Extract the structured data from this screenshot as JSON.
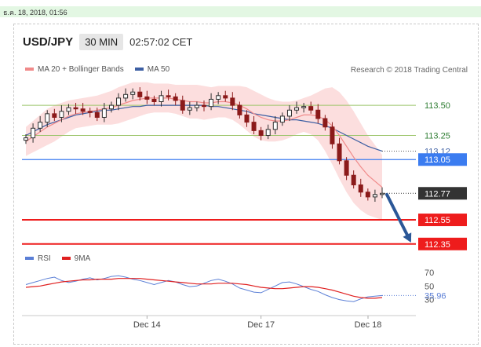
{
  "header": {
    "date_stamp": "ธ.ค. 18, 2018, 01:56",
    "pair": "USD/JPY",
    "timeframe": "30 MIN",
    "clock": "02:57:02 CET",
    "credit": "Research © 2018 Trading Central"
  },
  "legend": [
    {
      "label": "MA 20 + Bollinger Bands",
      "color": "#f08a8a"
    },
    {
      "label": "MA 50",
      "color": "#3d5fa3"
    }
  ],
  "rsi_legend": [
    {
      "label": "RSI",
      "color": "#5b7fd6"
    },
    {
      "label": "9MA",
      "color": "#e02020"
    }
  ],
  "colors": {
    "up_candle": "#2e2e2e",
    "down_candle": "#8b1a1a",
    "resistance": "#9bc46a",
    "support": "#ee1c1c",
    "pivot": "#3b7cf0",
    "forecast_arrow": "#2b5797",
    "bands_fill": "#fbd8d8"
  },
  "chart_data": {
    "type": "candlestick",
    "x_ticks": [
      "Dec 14",
      "Dec 17",
      "Dec 18"
    ],
    "y_range": [
      112.29,
      113.67
    ],
    "levels": [
      {
        "label": "113.50",
        "value": 113.5,
        "kind": "resistance"
      },
      {
        "label": "113.25",
        "value": 113.25,
        "kind": "resistance"
      },
      {
        "label": "113.12",
        "value": 113.12,
        "kind": "ma50"
      },
      {
        "label": "113.05",
        "value": 113.05,
        "kind": "pivot"
      },
      {
        "label": "112.77",
        "value": 112.77,
        "kind": "last"
      },
      {
        "label": "112.55",
        "value": 112.55,
        "kind": "support"
      },
      {
        "label": "112.35",
        "value": 112.35,
        "kind": "support"
      }
    ],
    "forecast": {
      "from": 112.76,
      "to": 112.36
    },
    "close": [
      113.23,
      113.31,
      113.36,
      113.43,
      113.4,
      113.45,
      113.48,
      113.47,
      113.45,
      113.44,
      113.4,
      113.47,
      113.5,
      113.56,
      113.59,
      113.61,
      113.57,
      113.55,
      113.53,
      113.58,
      113.57,
      113.54,
      113.46,
      113.48,
      113.5,
      113.49,
      113.55,
      113.58,
      113.56,
      113.5,
      113.42,
      113.36,
      113.29,
      113.25,
      113.3,
      113.36,
      113.41,
      113.46,
      113.48,
      113.49,
      113.46,
      113.39,
      113.32,
      113.18,
      113.04,
      112.92,
      112.84,
      112.78,
      112.74,
      112.76,
      112.77
    ],
    "ma20": [
      113.2,
      113.24,
      113.28,
      113.32,
      113.35,
      113.38,
      113.41,
      113.43,
      113.44,
      113.45,
      113.46,
      113.47,
      113.48,
      113.5,
      113.52,
      113.54,
      113.55,
      113.56,
      113.56,
      113.56,
      113.56,
      113.55,
      113.54,
      113.53,
      113.53,
      113.52,
      113.52,
      113.53,
      113.53,
      113.52,
      113.5,
      113.47,
      113.43,
      113.4,
      113.38,
      113.37,
      113.37,
      113.38,
      113.4,
      113.42,
      113.42,
      113.41,
      113.38,
      113.33,
      113.25,
      113.16,
      113.07,
      112.99,
      112.92,
      112.87,
      112.82
    ],
    "ma50": [
      113.25,
      113.28,
      113.31,
      113.34,
      113.36,
      113.38,
      113.4,
      113.42,
      113.43,
      113.44,
      113.45,
      113.46,
      113.46,
      113.47,
      113.48,
      113.49,
      113.49,
      113.5,
      113.5,
      113.5,
      113.5,
      113.5,
      113.5,
      113.5,
      113.5,
      113.5,
      113.49,
      113.49,
      113.48,
      113.47,
      113.46,
      113.45,
      113.43,
      113.42,
      113.41,
      113.4,
      113.39,
      113.38,
      113.38,
      113.37,
      113.36,
      113.35,
      113.33,
      113.31,
      113.28,
      113.25,
      113.22,
      113.19,
      113.16,
      113.14,
      113.12
    ],
    "band_width": [
      0.12,
      0.13,
      0.14,
      0.15,
      0.15,
      0.14,
      0.13,
      0.12,
      0.12,
      0.12,
      0.12,
      0.13,
      0.14,
      0.15,
      0.15,
      0.15,
      0.14,
      0.13,
      0.12,
      0.12,
      0.12,
      0.12,
      0.13,
      0.14,
      0.14,
      0.14,
      0.13,
      0.13,
      0.13,
      0.14,
      0.16,
      0.18,
      0.19,
      0.19,
      0.18,
      0.17,
      0.16,
      0.15,
      0.14,
      0.14,
      0.16,
      0.2,
      0.26,
      0.32,
      0.36,
      0.38,
      0.38,
      0.36,
      0.33,
      0.3,
      0.27
    ],
    "rsi": {
      "ticks": [
        "70",
        "50",
        "30"
      ],
      "y_range": [
        18,
        78
      ],
      "rsi": [
        52,
        55,
        58,
        61,
        63,
        58,
        55,
        57,
        60,
        62,
        59,
        61,
        64,
        65,
        63,
        60,
        58,
        55,
        52,
        55,
        58,
        56,
        52,
        49,
        50,
        54,
        58,
        60,
        57,
        53,
        47,
        44,
        41,
        40,
        45,
        50,
        55,
        56,
        53,
        49,
        45,
        42,
        37,
        33,
        30,
        28,
        27,
        31,
        34,
        35,
        35.96
      ],
      "ma9": [
        48,
        49,
        50,
        52,
        54,
        56,
        57,
        58,
        59,
        59,
        60,
        60,
        60,
        61,
        61,
        61,
        61,
        60,
        59,
        58,
        57,
        56,
        55,
        54,
        53,
        53,
        53,
        54,
        54,
        54,
        53,
        52,
        50,
        48,
        47,
        46,
        46,
        47,
        48,
        49,
        49,
        48,
        46,
        44,
        41,
        38,
        35,
        33,
        32,
        32,
        33
      ],
      "last_label": "35.96"
    }
  }
}
